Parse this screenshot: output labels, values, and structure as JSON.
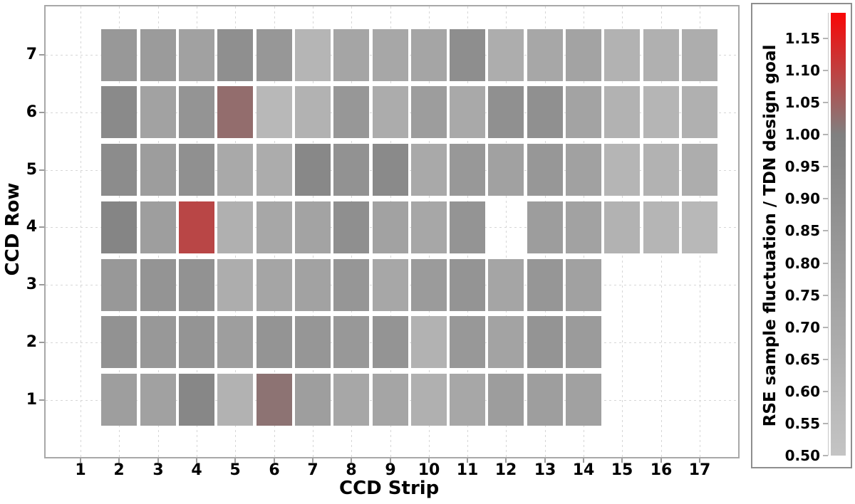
{
  "figure": {
    "background": "#ffffff",
    "frame_color": "#a8a8a8",
    "grid_color": "#d6d6d6",
    "text_color": "#000000"
  },
  "chart_data": {
    "type": "heatmap",
    "title": "",
    "xlabel": "CCD Strip",
    "ylabel": "CCD Row",
    "x_ticks": [
      1,
      2,
      3,
      4,
      5,
      6,
      7,
      8,
      9,
      10,
      11,
      12,
      13,
      14,
      15,
      16,
      17
    ],
    "y_ticks": [
      1,
      2,
      3,
      4,
      5,
      6,
      7
    ],
    "xlim": [
      0.1,
      18.1
    ],
    "ylim": [
      0.0,
      7.9
    ],
    "grid": true,
    "legend_position": "none",
    "colormap": {
      "vmin": 0.5,
      "vmid_gray": 1.0,
      "vmax": 1.19,
      "color_at_vmin": "#c4c4c4",
      "color_at_vmid": "#808080",
      "color_at_vmax": "#ff0000"
    },
    "colorbar": {
      "label": "RSE sample fluctuation / TDN design goal",
      "tick_labels": [
        "1.15",
        "1.10",
        "1.05",
        "1.00",
        "0.95",
        "0.90",
        "0.85",
        "0.80",
        "0.75",
        "0.70",
        "0.65",
        "0.60",
        "0.55",
        "0.50"
      ]
    },
    "rows": [
      {
        "row": 7,
        "cells": {
          "2": 0.82,
          "3": 0.8,
          "4": 0.76,
          "5": 0.89,
          "6": 0.83,
          "7": 0.61,
          "8": 0.73,
          "9": 0.71,
          "10": 0.73,
          "11": 0.9,
          "12": 0.67,
          "13": 0.71,
          "14": 0.74,
          "15": 0.63,
          "16": 0.65,
          "17": 0.67
        }
      },
      {
        "row": 6,
        "cells": {
          "2": 0.93,
          "3": 0.75,
          "4": 0.85,
          "5": 1.03,
          "6": 0.59,
          "7": 0.63,
          "8": 0.83,
          "9": 0.68,
          "10": 0.79,
          "11": 0.7,
          "12": 0.88,
          "13": 0.88,
          "14": 0.74,
          "15": 0.63,
          "16": 0.61,
          "17": 0.65
        }
      },
      {
        "row": 5,
        "cells": {
          "2": 0.91,
          "3": 0.79,
          "4": 0.88,
          "5": 0.7,
          "6": 0.68,
          "7": 0.94,
          "8": 0.87,
          "9": 0.93,
          "10": 0.7,
          "11": 0.82,
          "12": 0.76,
          "13": 0.83,
          "14": 0.76,
          "15": 0.61,
          "16": 0.63,
          "17": 0.67
        }
      },
      {
        "row": 4,
        "cells": {
          "2": 0.96,
          "3": 0.78,
          "4": 1.09,
          "5": 0.65,
          "6": 0.71,
          "7": 0.74,
          "8": 0.89,
          "9": 0.75,
          "10": 0.71,
          "11": 0.85,
          "13": 0.79,
          "14": 0.75,
          "15": 0.63,
          "16": 0.61,
          "17": 0.59
        }
      },
      {
        "row": 3,
        "cells": {
          "2": 0.82,
          "3": 0.85,
          "4": 0.87,
          "5": 0.67,
          "6": 0.73,
          "7": 0.75,
          "8": 0.84,
          "9": 0.71,
          "10": 0.8,
          "11": 0.85,
          "12": 0.73,
          "13": 0.84,
          "14": 0.76
        }
      },
      {
        "row": 2,
        "cells": {
          "2": 0.87,
          "3": 0.82,
          "4": 0.85,
          "5": 0.78,
          "6": 0.85,
          "7": 0.84,
          "8": 0.82,
          "9": 0.85,
          "10": 0.63,
          "11": 0.82,
          "12": 0.74,
          "13": 0.85,
          "14": 0.8
        }
      },
      {
        "row": 1,
        "cells": {
          "2": 0.78,
          "3": 0.76,
          "4": 0.95,
          "5": 0.63,
          "6": 1.02,
          "7": 0.78,
          "8": 0.71,
          "9": 0.73,
          "10": 0.65,
          "11": 0.71,
          "12": 0.79,
          "13": 0.78,
          "14": 0.76
        }
      }
    ]
  }
}
